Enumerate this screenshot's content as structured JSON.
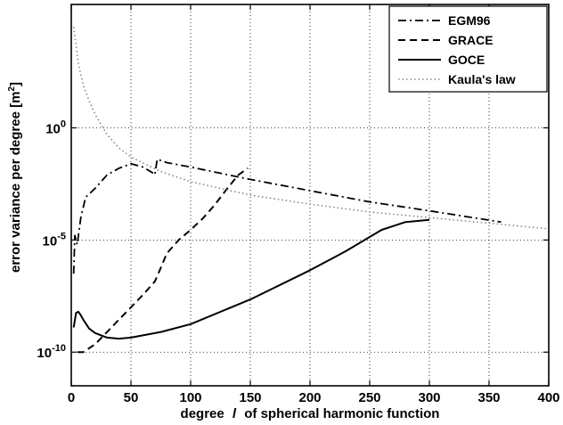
{
  "chart_data": {
    "type": "line",
    "title": "",
    "xlabel": "degree",
    "xlabel_italic": "l",
    "xlabel_rest": "of spherical harmonic function",
    "ylabel": "error variance per degree [m",
    "ylabel_sup": "2",
    "ylabel_end": "]",
    "xlim": [
      0,
      400
    ],
    "ylim_log10": [
      -11.5,
      5.5
    ],
    "yscale": "log",
    "grid": true,
    "legend_position": "top-right",
    "x_ticks": [
      0,
      50,
      100,
      150,
      200,
      250,
      300,
      350,
      400
    ],
    "x_tick_labels": [
      "0",
      "50",
      "100",
      "150",
      "200",
      "250",
      "300",
      "350",
      "400"
    ],
    "y_ticks_log10": [
      0,
      -5,
      -10
    ],
    "y_tick_bases": [
      "10",
      "10",
      "10"
    ],
    "y_tick_exponents": [
      "0",
      "-5",
      "-10"
    ],
    "series": [
      {
        "name": "EGM96",
        "style": "dashdot",
        "x": [
          2,
          3,
          5,
          8,
          12,
          20,
          30,
          40,
          50,
          60,
          68,
          70,
          72,
          80,
          100,
          150,
          200,
          250,
          300,
          360
        ],
        "log10_y": [
          -6.5,
          -4.8,
          -5.2,
          -4.0,
          -3.1,
          -2.7,
          -2.1,
          -1.8,
          -1.6,
          -1.75,
          -2.0,
          -2.1,
          -1.4,
          -1.55,
          -1.75,
          -2.3,
          -2.8,
          -3.3,
          -3.7,
          -4.2
        ]
      },
      {
        "name": "GRACE",
        "style": "dashed",
        "x": [
          5,
          10,
          20,
          30,
          40,
          50,
          60,
          70,
          73,
          80,
          90,
          100,
          110,
          120,
          130,
          140,
          148
        ],
        "log10_y": [
          -10.0,
          -10.0,
          -9.65,
          -9.1,
          -8.55,
          -8.0,
          -7.45,
          -6.85,
          -6.5,
          -5.6,
          -5.0,
          -4.55,
          -4.05,
          -3.45,
          -2.75,
          -2.1,
          -1.8
        ]
      },
      {
        "name": "GOCE",
        "style": "solid",
        "x": [
          2,
          4,
          6,
          8,
          10,
          15,
          20,
          30,
          40,
          50,
          75,
          100,
          150,
          200,
          230,
          260,
          280,
          300
        ],
        "log10_y": [
          -8.9,
          -8.25,
          -8.2,
          -8.35,
          -8.55,
          -8.95,
          -9.15,
          -9.35,
          -9.4,
          -9.35,
          -9.1,
          -8.75,
          -7.65,
          -6.35,
          -5.5,
          -4.55,
          -4.2,
          -4.1
        ]
      },
      {
        "name": "Kaula's law",
        "style": "dotted",
        "x": [
          2,
          3,
          4,
          5,
          7,
          10,
          15,
          20,
          30,
          40,
          50,
          75,
          100,
          150,
          200,
          250,
          300,
          350,
          400
        ],
        "log10_y": [
          4.5,
          4.1,
          3.7,
          3.2,
          2.6,
          1.9,
          1.2,
          0.6,
          -0.3,
          -0.9,
          -1.3,
          -1.95,
          -2.4,
          -3.0,
          -3.4,
          -3.75,
          -4.0,
          -4.25,
          -4.5
        ]
      }
    ]
  }
}
